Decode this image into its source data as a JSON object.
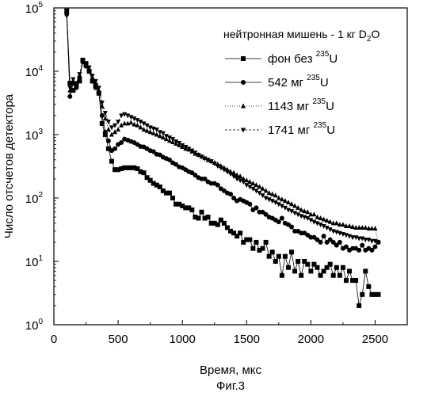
{
  "chart_data": {
    "type": "line",
    "xlabel": "Время, мкс",
    "ylabel": "Число отсчетов детектора",
    "caption": "Фиг.3",
    "legend_title": "нейтронная мишень - 1 кг D₂O",
    "legend_title_parts": [
      "нейтронная мишень - 1 кг D",
      "2",
      "O"
    ],
    "xlim": [
      0,
      2750
    ],
    "ylim": [
      1,
      100000
    ],
    "yscale": "log",
    "grid": false,
    "legend_position": "top-right",
    "x_ticks": [
      0,
      500,
      1000,
      1500,
      2000,
      2500
    ],
    "x_tick_labels": [
      "0",
      "500",
      "1000",
      "1500",
      "2000",
      "2500"
    ],
    "y_ticks": [
      1,
      10,
      100,
      1000,
      10000,
      100000
    ],
    "y_tick_labels": [
      {
        "base": "10",
        "exp": "0"
      },
      {
        "base": "10",
        "exp": "1"
      },
      {
        "base": "10",
        "exp": "2"
      },
      {
        "base": "10",
        "exp": "3"
      },
      {
        "base": "10",
        "exp": "4"
      },
      {
        "base": "10",
        "exp": "5"
      }
    ],
    "series": [
      {
        "name": "фон без ²³⁵U",
        "legend_parts": [
          "фон без ",
          "235",
          "U"
        ],
        "marker": "square",
        "x": [
          100,
          125,
          150,
          175,
          200,
          225,
          250,
          275,
          300,
          325,
          350,
          375,
          400,
          425,
          450,
          475,
          500,
          525,
          550,
          575,
          600,
          625,
          650,
          675,
          700,
          725,
          750,
          775,
          800,
          825,
          850,
          875,
          900,
          925,
          950,
          975,
          1000,
          1025,
          1050,
          1075,
          1100,
          1125,
          1150,
          1175,
          1200,
          1225,
          1250,
          1275,
          1300,
          1325,
          1350,
          1375,
          1400,
          1425,
          1450,
          1475,
          1500,
          1525,
          1550,
          1575,
          1600,
          1625,
          1650,
          1675,
          1700,
          1725,
          1750,
          1775,
          1800,
          1825,
          1850,
          1875,
          1900,
          1925,
          1950,
          1975,
          2000,
          2025,
          2050,
          2075,
          2100,
          2125,
          2150,
          2175,
          2200,
          2225,
          2250,
          2275,
          2300,
          2325,
          2350,
          2375,
          2400,
          2425,
          2450,
          2475,
          2500,
          2525
        ],
        "y": [
          90000,
          6500,
          5000,
          6000,
          7000,
          15000,
          13000,
          10000,
          7000,
          6000,
          4500,
          1500,
          1000,
          600,
          380,
          280,
          280,
          290,
          300,
          300,
          300,
          300,
          290,
          260,
          250,
          210,
          190,
          170,
          160,
          150,
          130,
          120,
          120,
          100,
          80,
          80,
          75,
          70,
          70,
          65,
          50,
          48,
          60,
          48,
          50,
          40,
          40,
          38,
          45,
          40,
          34,
          30,
          28,
          25,
          28,
          20,
          22,
          22,
          16,
          20,
          15,
          16,
          20,
          12,
          14,
          10,
          12,
          6,
          12,
          8,
          14,
          7,
          10,
          6,
          10,
          9,
          7,
          9,
          8,
          6,
          7,
          8,
          9,
          6,
          8,
          6,
          8,
          5,
          7,
          5,
          5,
          2,
          3,
          7,
          4,
          3,
          3,
          3
        ]
      },
      {
        "name": "542 мг ²³⁵U",
        "legend_parts": [
          "542 мг ",
          "235",
          "U"
        ],
        "marker": "circle",
        "x": [
          100,
          125,
          150,
          175,
          200,
          225,
          250,
          275,
          300,
          325,
          350,
          375,
          400,
          425,
          450,
          475,
          500,
          525,
          550,
          575,
          600,
          625,
          650,
          675,
          700,
          725,
          750,
          775,
          800,
          825,
          850,
          875,
          900,
          925,
          950,
          975,
          1000,
          1025,
          1050,
          1075,
          1100,
          1125,
          1150,
          1175,
          1200,
          1225,
          1250,
          1275,
          1300,
          1325,
          1350,
          1375,
          1400,
          1425,
          1450,
          1475,
          1500,
          1525,
          1550,
          1575,
          1600,
          1625,
          1650,
          1675,
          1700,
          1725,
          1750,
          1775,
          1800,
          1825,
          1850,
          1875,
          1900,
          1925,
          1950,
          1975,
          2000,
          2025,
          2050,
          2075,
          2100,
          2125,
          2150,
          2175,
          2200,
          2225,
          2250,
          2275,
          2300,
          2325,
          2350,
          2375,
          2400,
          2425,
          2450,
          2475,
          2500,
          2525
        ],
        "y": [
          80000,
          4000,
          6500,
          5500,
          8000,
          14000,
          12000,
          10000,
          7000,
          5500,
          4500,
          2000,
          1100,
          800,
          560,
          600,
          700,
          750,
          850,
          820,
          780,
          750,
          700,
          650,
          640,
          600,
          560,
          540,
          490,
          480,
          440,
          420,
          400,
          360,
          340,
          310,
          300,
          280,
          260,
          250,
          230,
          210,
          200,
          200,
          180,
          170,
          170,
          160,
          140,
          130,
          120,
          115,
          100,
          90,
          95,
          90,
          85,
          80,
          65,
          70,
          60,
          60,
          55,
          50,
          48,
          45,
          42,
          48,
          40,
          38,
          35,
          30,
          30,
          28,
          28,
          26,
          24,
          24,
          22,
          20,
          25,
          20,
          22,
          20,
          18,
          20,
          16,
          17,
          15,
          16,
          16,
          15,
          18,
          15,
          16,
          15,
          17,
          20
        ]
      },
      {
        "name": "1143 мг ²³⁵U",
        "legend_parts": [
          "1143 мг ",
          "235",
          "U"
        ],
        "marker": "triangle-up",
        "x": [
          100,
          125,
          150,
          175,
          200,
          225,
          250,
          275,
          300,
          325,
          350,
          375,
          400,
          425,
          450,
          475,
          500,
          525,
          550,
          575,
          600,
          625,
          650,
          675,
          700,
          725,
          750,
          775,
          800,
          825,
          850,
          875,
          900,
          925,
          950,
          975,
          1000,
          1025,
          1050,
          1075,
          1100,
          1125,
          1150,
          1175,
          1200,
          1225,
          1250,
          1275,
          1300,
          1325,
          1350,
          1375,
          1400,
          1425,
          1450,
          1475,
          1500,
          1525,
          1550,
          1575,
          1600,
          1625,
          1650,
          1675,
          1700,
          1725,
          1750,
          1775,
          1800,
          1825,
          1850,
          1875,
          1900,
          1925,
          1950,
          1975,
          2000,
          2025,
          2050,
          2075,
          2100,
          2125,
          2150,
          2175,
          2200,
          2225,
          2250,
          2275,
          2300,
          2325,
          2350,
          2375,
          2400,
          2425,
          2450,
          2475,
          2500,
          2525
        ],
        "y": [
          85000,
          5000,
          7000,
          6000,
          8500,
          14500,
          13000,
          11000,
          8000,
          6500,
          5000,
          2800,
          1800,
          1200,
          1000,
          1100,
          1200,
          1400,
          1500,
          1500,
          1550,
          1450,
          1400,
          1300,
          1200,
          1150,
          1100,
          1050,
          1000,
          950,
          900,
          850,
          800,
          760,
          720,
          680,
          640,
          600,
          580,
          540,
          500,
          480,
          450,
          430,
          400,
          380,
          360,
          340,
          320,
          300,
          280,
          260,
          250,
          230,
          220,
          200,
          190,
          180,
          170,
          160,
          150,
          140,
          130,
          120,
          115,
          110,
          100,
          95,
          90,
          85,
          80,
          75,
          70,
          65,
          62,
          60,
          55,
          55,
          50,
          48,
          46,
          44,
          42,
          40,
          40,
          38,
          38,
          36,
          36,
          35,
          34,
          34,
          34,
          34,
          33,
          33,
          33,
          20
        ]
      },
      {
        "name": "1741 мг ²³⁵U",
        "legend_parts": [
          "1741 мг ",
          "235",
          "U"
        ],
        "marker": "triangle-down",
        "x": [
          100,
          125,
          150,
          175,
          200,
          225,
          250,
          275,
          300,
          325,
          350,
          375,
          400,
          425,
          450,
          475,
          500,
          525,
          550,
          575,
          600,
          625,
          650,
          675,
          700,
          725,
          750,
          775,
          800,
          825,
          850,
          875,
          900,
          925,
          950,
          975,
          1000,
          1025,
          1050,
          1075,
          1100,
          1125,
          1150,
          1175,
          1200,
          1225,
          1250,
          1275,
          1300,
          1325,
          1350,
          1375,
          1400,
          1425,
          1450,
          1475,
          1500,
          1525,
          1550,
          1575,
          1600,
          1625,
          1650,
          1675,
          1700,
          1725,
          1750,
          1775,
          1800,
          1825,
          1850,
          1875,
          1900,
          1925,
          1950,
          1975,
          2000,
          2025,
          2050,
          2075,
          2100,
          2125,
          2150,
          2175,
          2200,
          2225,
          2250,
          2275,
          2300,
          2325,
          2350,
          2375,
          2400,
          2425,
          2450,
          2475,
          2500,
          2525
        ],
        "y": [
          75000,
          5500,
          7500,
          6500,
          9000,
          15000,
          13500,
          11500,
          8500,
          7000,
          5500,
          3200,
          2200,
          1600,
          1300,
          1400,
          1600,
          2000,
          2100,
          2000,
          1900,
          1800,
          1700,
          1600,
          1500,
          1400,
          1300,
          1250,
          1200,
          1100,
          1050,
          950,
          900,
          850,
          780,
          740,
          680,
          640,
          600,
          560,
          520,
          480,
          450,
          420,
          400,
          380,
          350,
          320,
          300,
          280,
          260,
          240,
          220,
          200,
          190,
          180,
          160,
          150,
          140,
          130,
          120,
          110,
          100,
          95,
          90,
          85,
          80,
          75,
          70,
          65,
          62,
          58,
          55,
          52,
          50,
          48,
          45,
          42,
          40,
          38,
          36,
          34,
          32,
          30,
          29,
          28,
          27,
          26,
          25,
          24,
          24,
          23,
          23,
          22,
          22,
          21,
          21,
          20
        ]
      }
    ]
  }
}
